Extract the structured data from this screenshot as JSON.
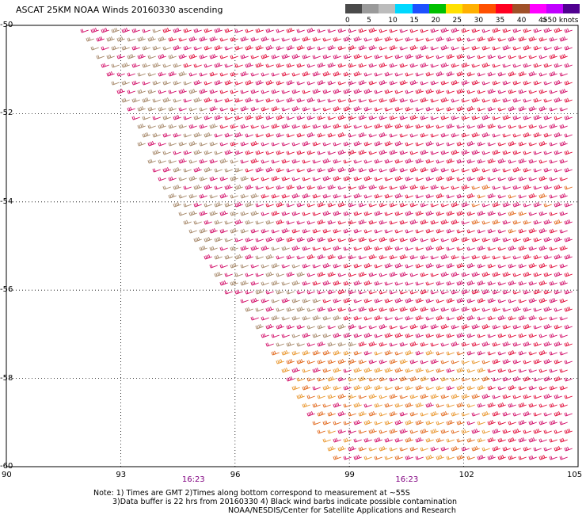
{
  "title": "ASCAT 25KM NOAA Winds 20160330 ascending",
  "legend": {
    "labels": [
      "0",
      "5",
      "10",
      "15",
      "20",
      "25",
      "30",
      "35",
      "40",
      "45",
      ">50 knots"
    ],
    "colors": [
      "#4a4a4a",
      "#9a9a9a",
      "#bcbcbc",
      "#00d8ff",
      "#1e50ff",
      "#00c000",
      "#ffe000",
      "#ffb000",
      "#ff5000",
      "#ff0020",
      "#a05028",
      "#ff00ff",
      "#c000ff",
      "#500090"
    ]
  },
  "y_axis": {
    "ticks": [
      "-50",
      "-52",
      "-54",
      "-56",
      "-58",
      "-60"
    ],
    "values": [
      -50,
      -52,
      -54,
      -56,
      -58,
      -60
    ]
  },
  "x_axis": {
    "ticks": [
      "90",
      "93",
      "96",
      "99",
      "102",
      "105"
    ],
    "values": [
      90,
      93,
      96,
      99,
      102,
      105
    ]
  },
  "times": [
    {
      "label": "16:23",
      "lon": 94.9
    },
    {
      "label": "16:23",
      "lon": 100.5
    }
  ],
  "notes": [
    "Note: 1) Times are GMT 2)Times along bottom correspond to measurement at ~55S",
    "3)Data buffer is 22 hrs from 20160330 4) Black wind barbs indicate possible contamination",
    "NOAA/NESDIS/Center for Satellite Applications and Research"
  ],
  "swath": {
    "west_edge": [
      [
        91.8,
        -50.0
      ],
      [
        95.8,
        -56.0
      ],
      [
        96.3,
        -56.3
      ],
      [
        98.6,
        -59.8
      ],
      [
        105,
        -60
      ]
    ],
    "wind_from_deg": 250,
    "speed_colors": {
      "low": "#a08060",
      "moderate": "#e06010",
      "high": "#e00030",
      "very_high": "#d00060"
    }
  }
}
